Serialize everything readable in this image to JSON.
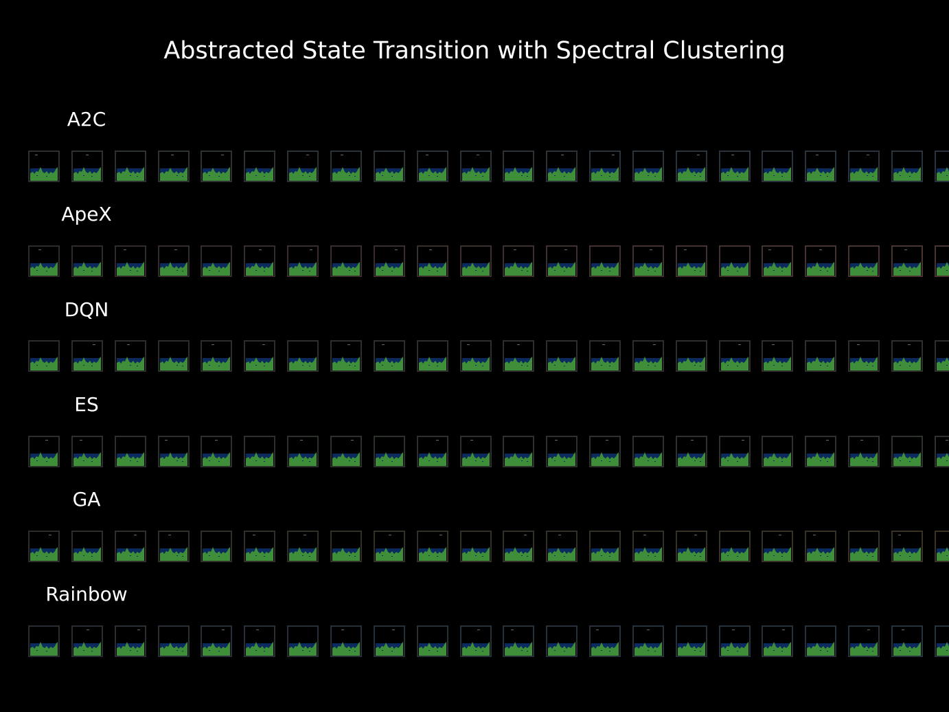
{
  "title": "Abstracted State Transition with Spectral Clustering",
  "theme": {
    "background": "#000000",
    "text_color": "#ffffff",
    "water_color": "#0b2a5e",
    "terrain_color": "#3f8f3a",
    "sky_color": "#000000"
  },
  "rows": [
    {
      "label": "A2C",
      "frame_color": "#2c3130",
      "frame_shift_color": "#2a3440",
      "frames": 22
    },
    {
      "label": "ApeX",
      "frame_color": "#2f2a2a",
      "frame_shift_color": "#4a3532",
      "frames": 22
    },
    {
      "label": "DQN",
      "frame_color": "#2c2e2c",
      "frame_shift_color": "#2f302c",
      "frames": 22
    },
    {
      "label": "ES",
      "frame_color": "#2c302c",
      "frame_shift_color": "#2e332d",
      "frames": 22
    },
    {
      "label": "GA",
      "frame_color": "#2e2e28",
      "frame_shift_color": "#3a3226",
      "frames": 22
    },
    {
      "label": "Rainbow",
      "frame_color": "#2a2e34",
      "frame_shift_color": "#26323c",
      "frames": 22
    }
  ],
  "thumbnail_content": "game-frame-icon"
}
